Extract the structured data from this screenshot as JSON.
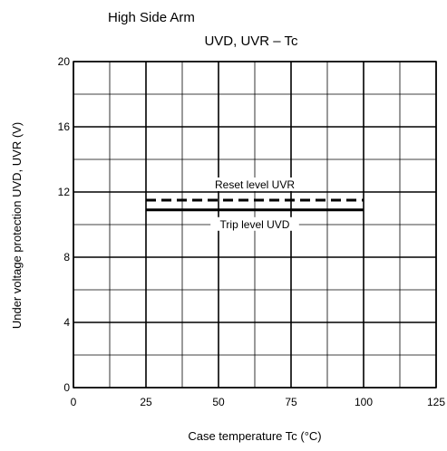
{
  "chart_data": {
    "type": "line",
    "title": "High Side Arm",
    "subtitle": "UVD, UVR – Tc",
    "xlabel": "Case temperature   Tc   (°C)",
    "ylabel": "Under voltage protection   UVD, UVR   (V)",
    "xlim": [
      0,
      125
    ],
    "ylim": [
      0,
      20
    ],
    "xticks": [
      0,
      25,
      50,
      75,
      100,
      125
    ],
    "yticks": [
      0,
      4,
      8,
      12,
      16,
      20
    ],
    "x_minor_step": 12.5,
    "y_minor_step": 2,
    "grid": true,
    "legend": "none",
    "series": [
      {
        "name": "Reset level UVR",
        "x": [
          25,
          100
        ],
        "y": [
          11.5,
          11.5
        ],
        "style": "dashed"
      },
      {
        "name": "Trip level UVD",
        "x": [
          25,
          100
        ],
        "y": [
          10.9,
          10.9
        ],
        "style": "solid"
      }
    ]
  }
}
